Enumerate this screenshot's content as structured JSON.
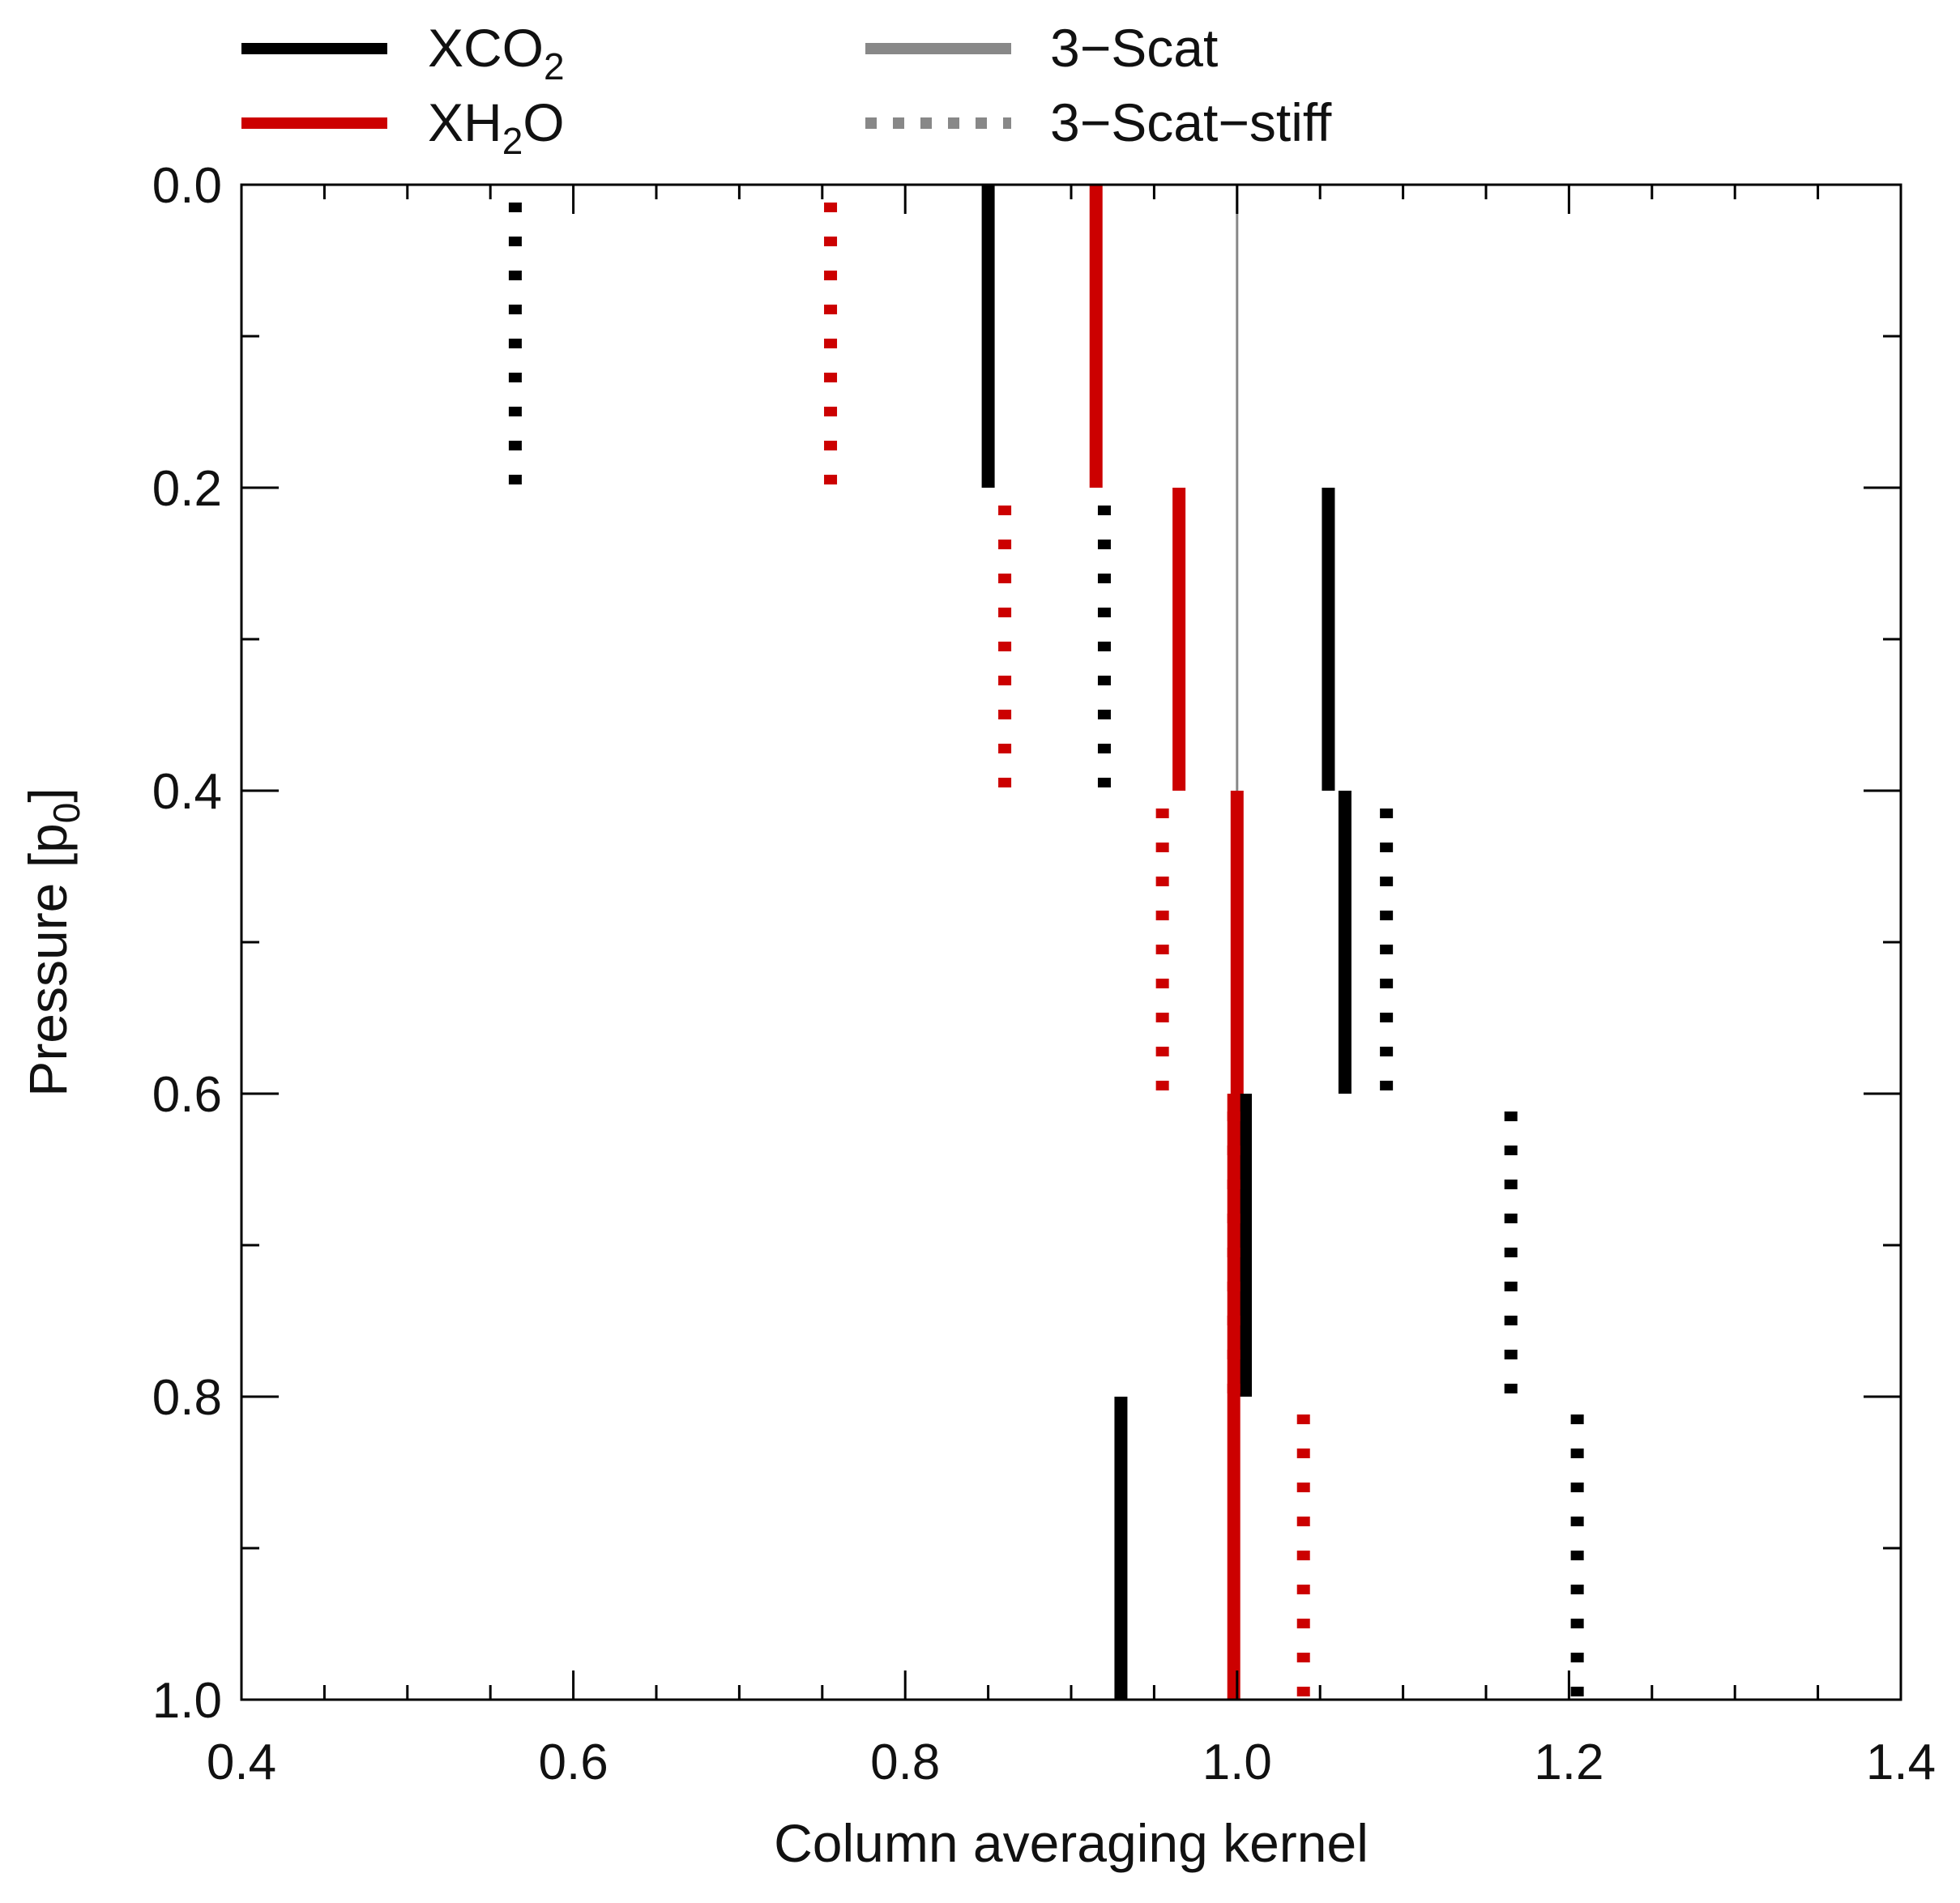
{
  "chart_data": {
    "type": "line",
    "xlabel": "Column averaging kernel",
    "ylabel": "Pressure [p0]",
    "ylabel_parts": {
      "main": "Pressure [p",
      "sub": "0",
      "end": "]"
    },
    "xlim": [
      0.4,
      1.4
    ],
    "ylim": [
      1.0,
      0.0
    ],
    "x_ticks": [
      0.4,
      0.6,
      0.8,
      1.0,
      1.2,
      1.4
    ],
    "x_tick_labels": [
      "0.4",
      "0.6",
      "0.8",
      "1.0",
      "1.2",
      "1.4"
    ],
    "y_ticks": [
      0.0,
      0.2,
      0.4,
      0.6,
      0.8,
      1.0
    ],
    "y_tick_labels": [
      "0.0",
      "0.2",
      "0.4",
      "0.6",
      "0.8",
      "1.0"
    ],
    "reference_line": {
      "x": 1.0,
      "color": "#888888"
    },
    "legend": {
      "placement": "top",
      "entries": [
        {
          "label": "XCO2",
          "parts": {
            "main": "XCO",
            "sub": "2",
            "end": ""
          },
          "color": "#000000",
          "style": "solid"
        },
        {
          "label": "XH2O",
          "parts": {
            "main": "XH",
            "sub": "2",
            "end": "O"
          },
          "color": "#cc0000",
          "style": "solid"
        },
        {
          "label": "3−Scat",
          "parts": {
            "main": "3−Scat",
            "sub": "",
            "end": ""
          },
          "color": "#888888",
          "style": "solid"
        },
        {
          "label": "3−Scat−stiff",
          "parts": {
            "main": "3−Scat−stiff",
            "sub": "",
            "end": ""
          },
          "color": "#888888",
          "style": "dotted"
        }
      ]
    },
    "series": [
      {
        "name": "XCO2 3-Scat",
        "gas": "XCO2",
        "mode": "3-Scat",
        "color": "#000000",
        "style": "solid",
        "layers": [
          {
            "p_top": 0.0,
            "p_bottom": 0.2,
            "value": 0.85
          },
          {
            "p_top": 0.2,
            "p_bottom": 0.4,
            "value": 1.055
          },
          {
            "p_top": 0.4,
            "p_bottom": 0.6,
            "value": 1.065
          },
          {
            "p_top": 0.6,
            "p_bottom": 0.8,
            "value": 1.005
          },
          {
            "p_top": 0.8,
            "p_bottom": 1.0,
            "value": 0.93
          }
        ]
      },
      {
        "name": "XH2O 3-Scat",
        "gas": "XH2O",
        "mode": "3-Scat",
        "color": "#cc0000",
        "style": "solid",
        "layers": [
          {
            "p_top": 0.0,
            "p_bottom": 0.2,
            "value": 0.915
          },
          {
            "p_top": 0.2,
            "p_bottom": 0.4,
            "value": 0.965
          },
          {
            "p_top": 0.4,
            "p_bottom": 0.6,
            "value": 1.0
          },
          {
            "p_top": 0.6,
            "p_bottom": 0.8,
            "value": 0.998
          },
          {
            "p_top": 0.8,
            "p_bottom": 1.0,
            "value": 0.998
          }
        ]
      },
      {
        "name": "XCO2 3-Scat-stiff",
        "gas": "XCO2",
        "mode": "3-Scat-stiff",
        "color": "#000000",
        "style": "dotted",
        "layers": [
          {
            "p_top": 0.0,
            "p_bottom": 0.2,
            "value": 0.565
          },
          {
            "p_top": 0.2,
            "p_bottom": 0.4,
            "value": 0.92
          },
          {
            "p_top": 0.4,
            "p_bottom": 0.6,
            "value": 1.09
          },
          {
            "p_top": 0.6,
            "p_bottom": 0.8,
            "value": 1.165
          },
          {
            "p_top": 0.8,
            "p_bottom": 1.0,
            "value": 1.205
          }
        ]
      },
      {
        "name": "XH2O 3-Scat-stiff",
        "gas": "XH2O",
        "mode": "3-Scat-stiff",
        "color": "#cc0000",
        "style": "dotted",
        "layers": [
          {
            "p_top": 0.0,
            "p_bottom": 0.2,
            "value": 0.755
          },
          {
            "p_top": 0.2,
            "p_bottom": 0.4,
            "value": 0.86
          },
          {
            "p_top": 0.4,
            "p_bottom": 0.6,
            "value": 0.955
          },
          {
            "p_top": 0.6,
            "p_bottom": 0.8,
            "value": 0.998
          },
          {
            "p_top": 0.8,
            "p_bottom": 1.0,
            "value": 1.04
          }
        ]
      }
    ]
  }
}
